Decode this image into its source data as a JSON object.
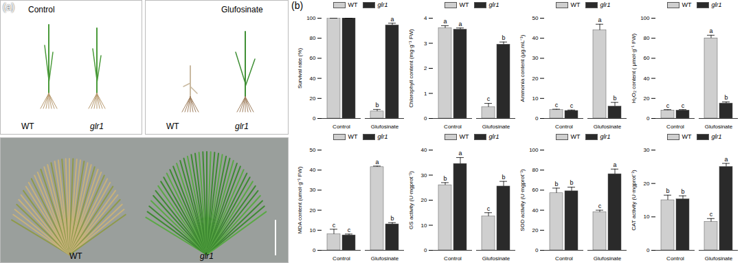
{
  "photo_panel": {
    "label": "(a)",
    "photos": [
      {
        "title": "Control",
        "labels": [
          "WT",
          "glr1"
        ]
      },
      {
        "title": "Glufosinate",
        "labels": [
          "WT",
          "glr1"
        ]
      },
      {
        "labels": [
          "WT",
          "glr1"
        ]
      }
    ]
  },
  "chart_panel_label": "(b)",
  "chart_data": [
    {
      "type": "bar",
      "y_label": "Survival rate (%)",
      "categories": [
        "Control",
        "Glufosinate"
      ],
      "ylim": [
        0,
        100
      ],
      "yticks": [
        0,
        20,
        40,
        60,
        80,
        100
      ],
      "legend": "top",
      "series": [
        {
          "name": "WT",
          "color": "#cfcfcf",
          "values": [
            100,
            7
          ],
          "errors": [
            0,
            2
          ],
          "letters": [
            null,
            "b"
          ]
        },
        {
          "name": "glr1",
          "color": "#2a2a2a",
          "values": [
            100,
            93
          ],
          "errors": [
            0,
            2
          ],
          "letters": [
            null,
            "a"
          ]
        }
      ]
    },
    {
      "type": "bar",
      "y_label": "Chlorophyll content (mg·g⁻¹ FW)",
      "categories": [
        "Control",
        "Glufosinate"
      ],
      "ylim": [
        0,
        4
      ],
      "yticks": [
        0,
        1,
        2,
        3,
        4
      ],
      "legend": "top",
      "series": [
        {
          "name": "WT",
          "color": "#cfcfcf",
          "values": [
            3.6,
            0.45
          ],
          "errors": [
            0.1,
            0.15
          ],
          "letters": [
            "a",
            "c"
          ]
        },
        {
          "name": "glr1",
          "color": "#2a2a2a",
          "values": [
            3.55,
            2.95
          ],
          "errors": [
            0.06,
            0.1
          ],
          "letters": [
            "a",
            "b"
          ]
        }
      ]
    },
    {
      "type": "bar",
      "y_label": "Ammonia content (μg.mL⁻¹)",
      "categories": [
        "Control",
        "Glufosinate"
      ],
      "ylim": [
        0,
        50
      ],
      "yticks": [
        0,
        10,
        20,
        30,
        40,
        50
      ],
      "legend": "top",
      "series": [
        {
          "name": "WT",
          "color": "#cfcfcf",
          "values": [
            4.2,
            44
          ],
          "errors": [
            0.4,
            3
          ],
          "letters": [
            "c",
            "a"
          ]
        },
        {
          "name": "glr1",
          "color": "#2a2a2a",
          "values": [
            3.8,
            6
          ],
          "errors": [
            0.4,
            2
          ],
          "letters": [
            "c",
            "b"
          ]
        }
      ]
    },
    {
      "type": "bar",
      "y_label": "H₂O₂ content ( μmol·g⁻¹ FW)",
      "categories": [
        "Control",
        "Glufosinate"
      ],
      "ylim": [
        0,
        100
      ],
      "yticks": [
        0,
        20,
        40,
        60,
        80,
        100
      ],
      "legend": "top",
      "series": [
        {
          "name": "WT",
          "color": "#cfcfcf",
          "values": [
            8,
            80
          ],
          "errors": [
            0.8,
            3
          ],
          "letters": [
            "c",
            "a"
          ]
        },
        {
          "name": "glr1",
          "color": "#2a2a2a",
          "values": [
            8,
            15
          ],
          "errors": [
            0.8,
            1.5
          ],
          "letters": [
            "c",
            "b"
          ]
        }
      ]
    },
    {
      "type": "bar",
      "y_label": "MDA content (umol·g⁻¹ FW)",
      "categories": [
        "Control",
        "Glufosinate"
      ],
      "ylim": [
        0,
        50
      ],
      "yticks": [
        0,
        10,
        20,
        30,
        40,
        50
      ],
      "legend": "top",
      "series": [
        {
          "name": "WT",
          "color": "#cfcfcf",
          "values": [
            8,
            41.5
          ],
          "errors": [
            2.5,
            0.5
          ],
          "letters": [
            "c",
            "a"
          ]
        },
        {
          "name": "glr1",
          "color": "#2a2a2a",
          "values": [
            7.5,
            13
          ],
          "errors": [
            0.6,
            0.8
          ],
          "letters": [
            "c",
            "b"
          ]
        }
      ]
    },
    {
      "type": "bar",
      "y_label": "GS activity (U·mgprot⁻¹)",
      "categories": [
        "Control",
        "Glufosinate"
      ],
      "ylim": [
        0,
        40
      ],
      "yticks": [
        0,
        10,
        20,
        30,
        40
      ],
      "legend": "top",
      "series": [
        {
          "name": "WT",
          "color": "#cfcfcf",
          "values": [
            26,
            13.5
          ],
          "errors": [
            1,
            1.5
          ],
          "letters": [
            "b",
            "c"
          ]
        },
        {
          "name": "glr1",
          "color": "#2a2a2a",
          "values": [
            34.5,
            25.5
          ],
          "errors": [
            2.5,
            2
          ],
          "letters": [
            "a",
            "b"
          ]
        }
      ]
    },
    {
      "type": "bar",
      "y_label": "SOD activity (U·mgprot⁻¹)",
      "categories": [
        "Control",
        "Glufosinate"
      ],
      "ylim": [
        0,
        100
      ],
      "yticks": [
        0,
        20,
        40,
        60,
        80,
        100
      ],
      "legend": "top",
      "series": [
        {
          "name": "WT",
          "color": "#cfcfcf",
          "values": [
            57,
            38
          ],
          "errors": [
            5,
            2
          ],
          "letters": [
            "b",
            "c"
          ]
        },
        {
          "name": "glr1",
          "color": "#2a2a2a",
          "values": [
            59,
            76
          ],
          "errors": [
            4,
            5
          ],
          "letters": [
            "b",
            "a"
          ]
        }
      ]
    },
    {
      "type": "bar",
      "y_label": "CAT activity (U·mgprot⁻¹)",
      "categories": [
        "Control",
        "Glufosinate"
      ],
      "ylim": [
        0,
        30
      ],
      "yticks": [
        0,
        10,
        20,
        30
      ],
      "legend": "top",
      "series": [
        {
          "name": "WT",
          "color": "#cfcfcf",
          "values": [
            15,
            8.5
          ],
          "errors": [
            1.5,
            1
          ],
          "letters": [
            "b",
            "c"
          ]
        },
        {
          "name": "glr1",
          "color": "#2a2a2a",
          "values": [
            15.3,
            25
          ],
          "errors": [
            1,
            1
          ],
          "letters": [
            "b",
            "a"
          ]
        }
      ]
    }
  ]
}
